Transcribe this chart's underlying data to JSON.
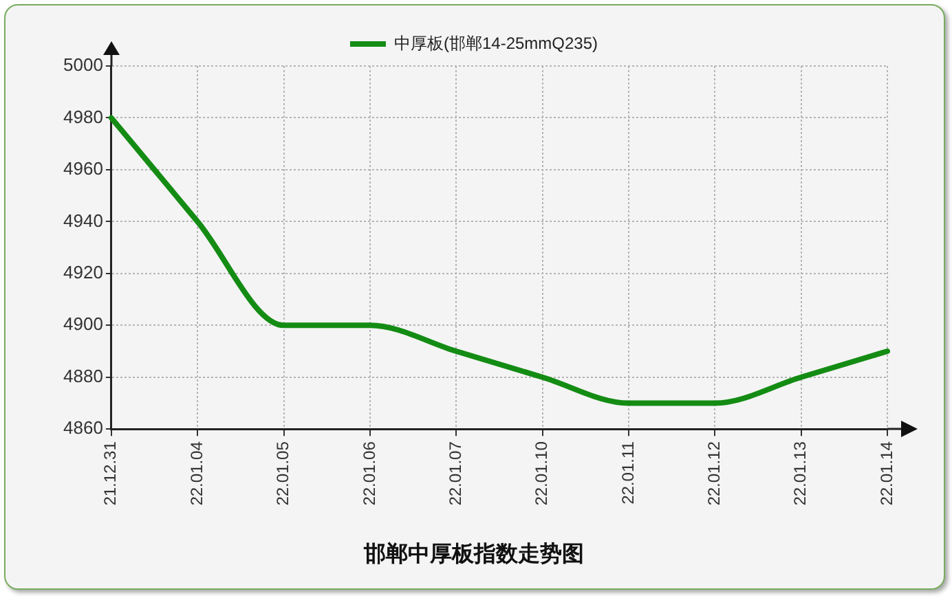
{
  "chart_data": {
    "type": "line",
    "title": "邯郸中厚板指数走势图",
    "categories": [
      "21.12.31",
      "22.01.04",
      "22.01.05",
      "22.01.06",
      "22.01.07",
      "22.01.10",
      "22.01.11",
      "22.01.12",
      "22.01.13",
      "22.01.14"
    ],
    "series": [
      {
        "name": "中厚板(邯郸14-25mmQ235)",
        "color": "#148c14",
        "values": [
          4980,
          4940,
          4900,
          4900,
          4890,
          4880,
          4870,
          4870,
          4880,
          4890
        ]
      }
    ],
    "ylim": [
      4860,
      5000
    ],
    "yticks": [
      4860,
      4880,
      4900,
      4920,
      4940,
      4960,
      4980,
      5000
    ],
    "grid": true,
    "legend": "top",
    "marker": "none"
  }
}
